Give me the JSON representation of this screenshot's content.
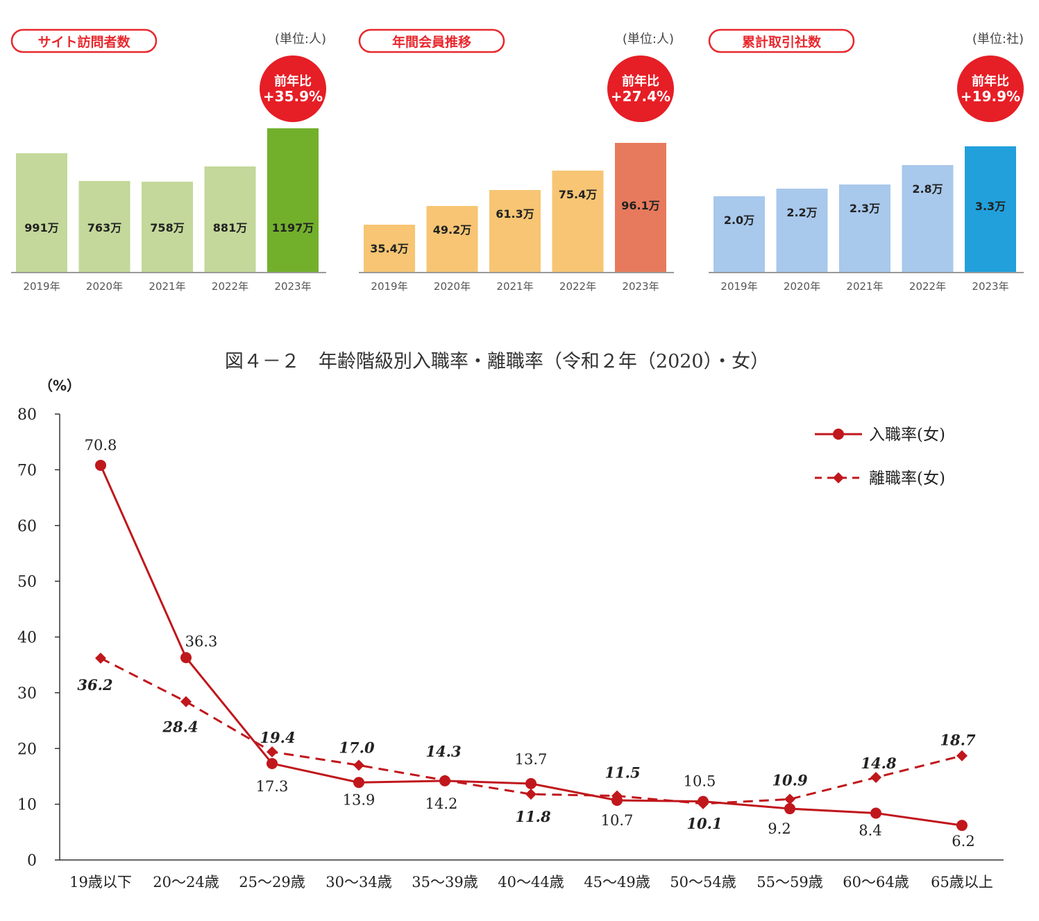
{
  "chart_data": [
    {
      "type": "bar",
      "title": "サイト訪問者数",
      "unit_label": "(単位:人)",
      "badge": {
        "line1": "前年比",
        "line2": "+35.9%"
      },
      "categories": [
        "2019年",
        "2020年",
        "2021年",
        "2022年",
        "2023年"
      ],
      "values": [
        991,
        763,
        758,
        881,
        1197
      ],
      "value_labels": [
        "991万",
        "763万",
        "758万",
        "881万",
        "1197万"
      ],
      "ylim": [
        0,
        1300
      ],
      "colors": [
        "#c3d89a",
        "#c3d89a",
        "#c3d89a",
        "#c3d89a",
        "#72b02c"
      ]
    },
    {
      "type": "bar",
      "title": "年間会員推移",
      "unit_label": "(単位:人)",
      "badge": {
        "line1": "前年比",
        "line2": "+27.4%"
      },
      "categories": [
        "2019年",
        "2020年",
        "2021年",
        "2022年",
        "2023年"
      ],
      "values": [
        35.4,
        49.2,
        61.3,
        75.4,
        96.1
      ],
      "value_labels": [
        "35.4万",
        "49.2万",
        "61.3万",
        "75.4万",
        "96.1万"
      ],
      "ylim": [
        0,
        110
      ],
      "colors": [
        "#f7c573",
        "#f7c573",
        "#f7c573",
        "#f7c573",
        "#e77a5c"
      ]
    },
    {
      "type": "bar",
      "title": "累計取引社数",
      "unit_label": "(単位:社)",
      "badge": {
        "line1": "前年比",
        "line2": "+19.9%"
      },
      "categories": [
        "2019年",
        "2020年",
        "2021年",
        "2022年",
        "2023年"
      ],
      "values": [
        2.0,
        2.2,
        2.3,
        2.8,
        3.3
      ],
      "value_labels": [
        "2.0万",
        "2.2万",
        "2.3万",
        "2.8万",
        "3.3万"
      ],
      "ylim": [
        0,
        3.8
      ],
      "colors": [
        "#a8c8ec",
        "#a8c8ec",
        "#a8c8ec",
        "#a8c8ec",
        "#21a0dc"
      ]
    },
    {
      "type": "line",
      "title": "図４－２　年齢階級別入職率・離職率（令和２年（2020）・女）",
      "ylabel": "（%）",
      "ylim": [
        0,
        80
      ],
      "yticks": [
        0,
        10,
        20,
        30,
        40,
        50,
        60,
        70,
        80
      ],
      "categories": [
        "19歳以下",
        "20～24歳",
        "25～29歳",
        "30～34歳",
        "35～39歳",
        "40～44歳",
        "45～49歳",
        "50～54歳",
        "55～59歳",
        "60～64歳",
        "65歳以上"
      ],
      "legend_position": "top-right",
      "series": [
        {
          "name": "入職率(女)",
          "style": "solid-circle",
          "color": "#c0171c",
          "values": [
            70.8,
            36.3,
            17.3,
            13.9,
            14.2,
            13.7,
            10.7,
            10.5,
            9.2,
            8.4,
            6.2
          ]
        },
        {
          "name": "離職率(女)",
          "style": "dashed-diamond",
          "color": "#c0171c",
          "values": [
            36.2,
            28.4,
            19.4,
            17.0,
            14.3,
            11.8,
            11.5,
            10.1,
            10.9,
            14.8,
            18.7
          ]
        }
      ]
    }
  ]
}
